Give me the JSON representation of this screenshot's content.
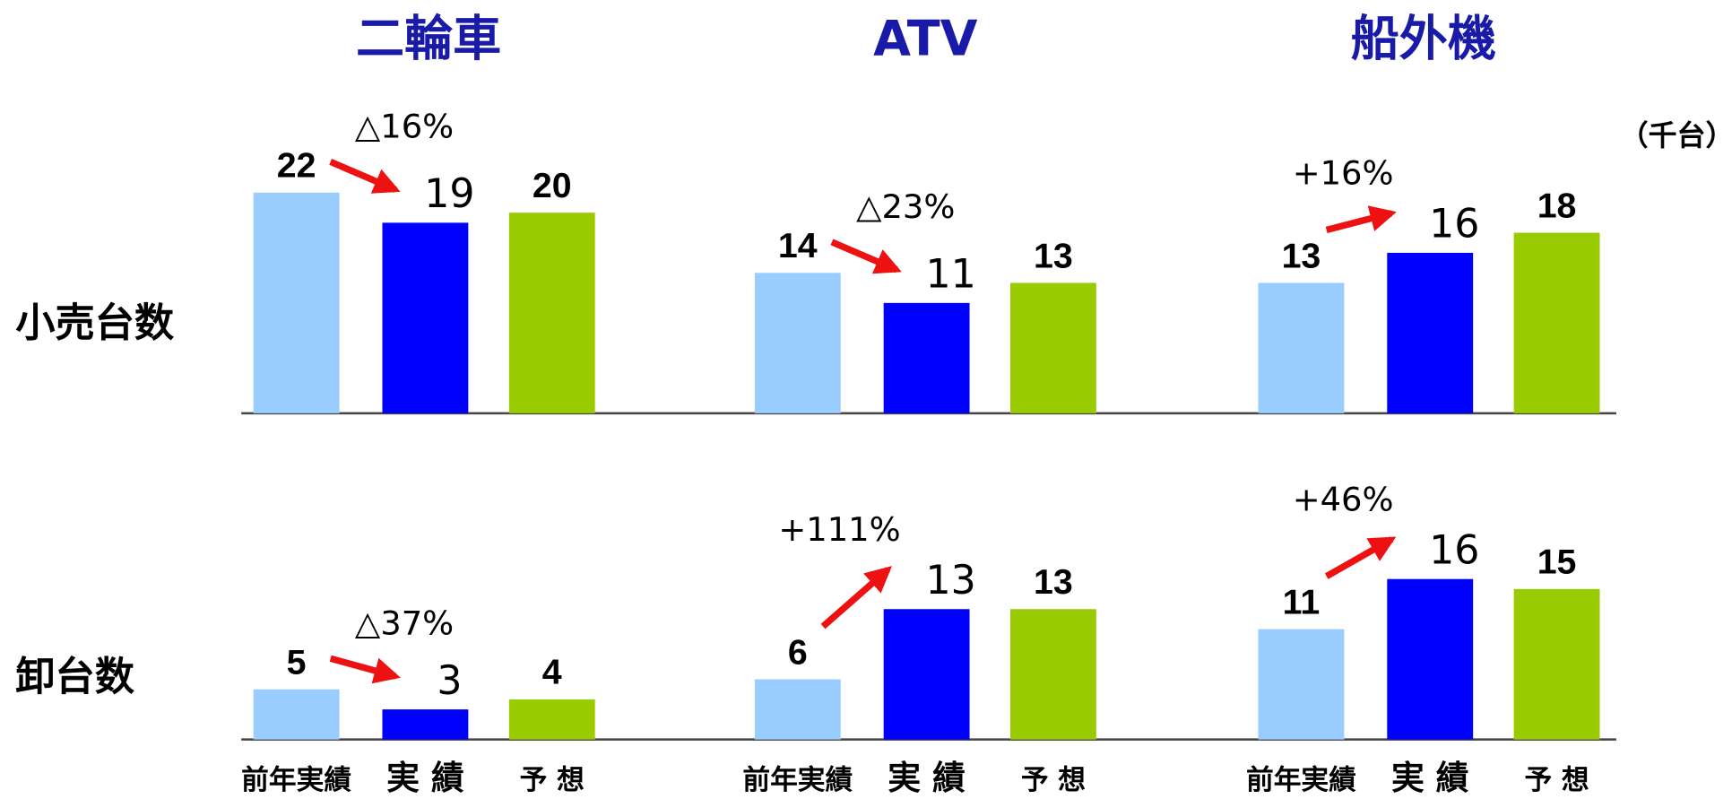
{
  "chart_data": {
    "type": "bar",
    "unit": "（千台）",
    "groups": [
      "二輪車",
      "ATV",
      "船外機"
    ],
    "row_labels": [
      "小売台数",
      "卸台数"
    ],
    "categories": [
      "前年実績",
      "実 績",
      "予 想"
    ],
    "colors": [
      "#99ccff",
      "#0000ff",
      "#99cc00"
    ],
    "panels": [
      {
        "values": [
          22,
          19,
          20
        ],
        "change": "△16%"
      },
      {
        "values": [
          14,
          11,
          13
        ],
        "change": "△23%"
      },
      {
        "values": [
          13,
          16,
          18
        ],
        "change": "+16%"
      },
      {
        "values": [
          5,
          3,
          4
        ],
        "change": "△37%"
      },
      {
        "values": [
          6,
          13,
          13
        ],
        "change": "+111%"
      },
      {
        "values": [
          11,
          16,
          15
        ],
        "change": "+46%"
      }
    ]
  }
}
